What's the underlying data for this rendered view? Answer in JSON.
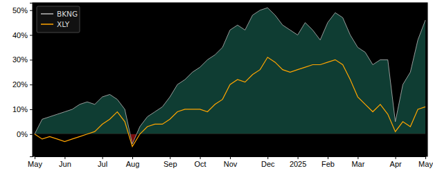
{
  "chart_data": {
    "type": "line",
    "categories": [
      "May",
      null,
      null,
      null,
      "Jun",
      null,
      null,
      null,
      null,
      "Jul",
      null,
      null,
      null,
      "Aug",
      null,
      null,
      null,
      null,
      "Sep",
      null,
      null,
      null,
      "Oct",
      null,
      null,
      null,
      "Nov",
      null,
      null,
      null,
      null,
      "Dec",
      null,
      null,
      null,
      "2025",
      null,
      null,
      null,
      "Feb",
      null,
      null,
      null,
      "Mar",
      null,
      null,
      null,
      null,
      "Apr",
      null,
      null,
      null,
      "May"
    ],
    "series": [
      {
        "name": "BKNG",
        "type": "area",
        "color": "#bbbbbb",
        "values": [
          0,
          6,
          7,
          8,
          9,
          10,
          12,
          13,
          12,
          15,
          16,
          14,
          10,
          -4,
          3,
          7,
          9,
          11,
          15,
          20,
          22,
          25,
          27,
          30,
          32,
          35,
          42,
          44,
          42,
          48,
          50,
          51,
          48,
          44,
          42,
          40,
          45,
          42,
          38,
          45,
          49,
          47,
          40,
          35,
          33,
          28,
          30,
          30,
          5,
          20,
          25,
          38,
          46
        ]
      },
      {
        "name": "XLY",
        "type": "line",
        "color": "#ffa500",
        "values": [
          0,
          -2,
          -1,
          -2,
          -3,
          -2,
          -1,
          0,
          1,
          4,
          6,
          9,
          5,
          -5,
          0,
          3,
          4,
          4,
          6,
          9,
          10,
          10,
          10,
          9,
          12,
          14,
          20,
          22,
          21,
          24,
          26,
          31,
          29,
          26,
          25,
          26,
          27,
          28,
          28,
          29,
          30,
          28,
          22,
          15,
          12,
          9,
          12,
          8,
          1,
          5,
          3,
          10,
          11
        ]
      }
    ],
    "ylim": [
      -9,
      53
    ],
    "yticks": [
      {
        "value": 0,
        "label": "0%"
      },
      {
        "value": 10,
        "label": "10%"
      },
      {
        "value": 20,
        "label": "20%"
      },
      {
        "value": 30,
        "label": "30%"
      },
      {
        "value": 40,
        "label": "40%"
      },
      {
        "value": 50,
        "label": "50%"
      }
    ],
    "grid": false,
    "legend": "upper left"
  }
}
